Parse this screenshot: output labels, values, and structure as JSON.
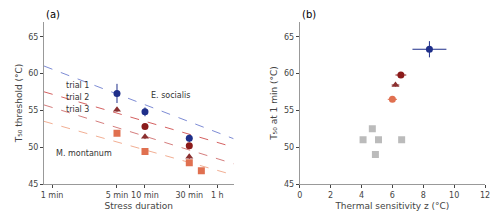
{
  "chart_data": [
    {
      "type": "scatter",
      "title": "(a)",
      "x_label": "Stress duration",
      "y_label": "T₅₀ threshold (°C)",
      "xlim": [
        -0.2,
        4.5
      ],
      "xticks": [
        {
          "value": 0,
          "label": "1 min"
        },
        {
          "value": 1.609,
          "label": "5 min"
        },
        {
          "value": 2.303,
          "label": "10 min"
        },
        {
          "value": 3.401,
          "label": "30 min"
        },
        {
          "value": 4.094,
          "label": "1 h"
        }
      ],
      "ylim": [
        45,
        67
      ],
      "yticks": [
        45,
        50,
        55,
        60,
        65
      ],
      "grid": false,
      "series": [
        {
          "type": "line",
          "line_style": "dashed",
          "color": "#6677CC",
          "x": [
            -0.2,
            4.5
          ],
          "values": [
            61.02,
            51.15
          ]
        },
        {
          "type": "line",
          "line_style": "dashed",
          "color": "#CC4444",
          "x": [
            -0.2,
            4.5
          ],
          "values": [
            57.52,
            50.0
          ]
        },
        {
          "type": "line",
          "line_style": "dashed",
          "color": "#CC6666",
          "x": [
            -0.2,
            4.5
          ],
          "values": [
            55.74,
            47.75
          ]
        },
        {
          "type": "line",
          "line_style": "dashed",
          "color": "#EEA080",
          "x": [
            -0.2,
            4.5
          ],
          "values": [
            53.51,
            46.225
          ]
        },
        {
          "type": "scatter",
          "marker": "circle",
          "color": "#1F2F8A",
          "x": [
            1.609,
            2.303,
            3.401
          ],
          "values": [
            57.3,
            54.8,
            51.2
          ],
          "yerr": [
            1.3,
            0.6,
            0.5
          ]
        },
        {
          "type": "scatter",
          "marker": "circle",
          "color": "#8B1A1A",
          "x": [
            2.303,
            3.401
          ],
          "values": [
            52.8,
            50.2
          ],
          "yerr": [
            0.3,
            0.3
          ]
        },
        {
          "type": "scatter",
          "marker": "triangle-up",
          "color": "#8B3030",
          "x": [
            1.609,
            2.303,
            3.401
          ],
          "values": [
            55.1,
            51.4,
            48.7
          ],
          "yerr": [
            0.3,
            0.3,
            0.3
          ]
        },
        {
          "type": "scatter",
          "marker": "square",
          "color": "#E07050",
          "x": [
            1.609,
            2.303,
            3.401,
            3.7
          ],
          "values": [
            51.9,
            49.4,
            47.9,
            46.8
          ],
          "yerr": [
            0.3,
            0.3,
            0.3,
            0.3
          ]
        }
      ],
      "annotations": [
        {
          "text": "E. socialis",
          "x": 2.4,
          "y": 56.2
        },
        {
          "text": "M. montanum",
          "x": 0.05,
          "y": 48.2
        },
        {
          "text": "trial 1",
          "x": 0.3,
          "y": 57.5
        },
        {
          "text": "trial 2",
          "x": 0.3,
          "y": 55.9
        },
        {
          "text": "trial 3",
          "x": 0.3,
          "y": 54.3
        }
      ]
    },
    {
      "type": "scatter",
      "title": "(b)",
      "x_label": "Thermal sensitivity z (°C)",
      "y_label": "T₅₀ at 1 min (°C)",
      "xlim": [
        0,
        12
      ],
      "xticks": [
        0,
        2,
        4,
        6,
        8,
        10,
        12
      ],
      "ylim": [
        45,
        67
      ],
      "yticks": [
        45,
        50,
        55,
        60,
        65
      ],
      "grid": false,
      "series": [
        {
          "type": "scatter",
          "marker": "square",
          "color": "#BBBBBB",
          "x": [
            4.1,
            4.9,
            4.7,
            5.1,
            6.6
          ],
          "values": [
            51.0,
            49.0,
            52.5,
            51.0,
            51.0
          ]
        },
        {
          "type": "scatter",
          "marker": "circle",
          "color": "#1F2F8A",
          "x": [
            8.4
          ],
          "values": [
            63.3
          ],
          "xerr": [
            1.1
          ],
          "yerr": [
            1.1
          ]
        },
        {
          "type": "scatter",
          "marker": "circle",
          "color": "#8B1A1A",
          "x": [
            6.55
          ],
          "values": [
            59.8
          ],
          "xerr": [
            0.35
          ],
          "yerr": [
            0.3
          ]
        },
        {
          "type": "scatter",
          "marker": "triangle-up",
          "color": "#8B3030",
          "x": [
            6.2
          ],
          "values": [
            58.45
          ],
          "xerr": [
            0.25
          ],
          "yerr": [
            0.22
          ]
        },
        {
          "type": "scatter",
          "marker": "circle",
          "color": "#E07050",
          "x": [
            6.0
          ],
          "values": [
            56.5
          ],
          "xerr": [
            0.3
          ],
          "yerr": [
            0.3
          ]
        }
      ]
    }
  ]
}
